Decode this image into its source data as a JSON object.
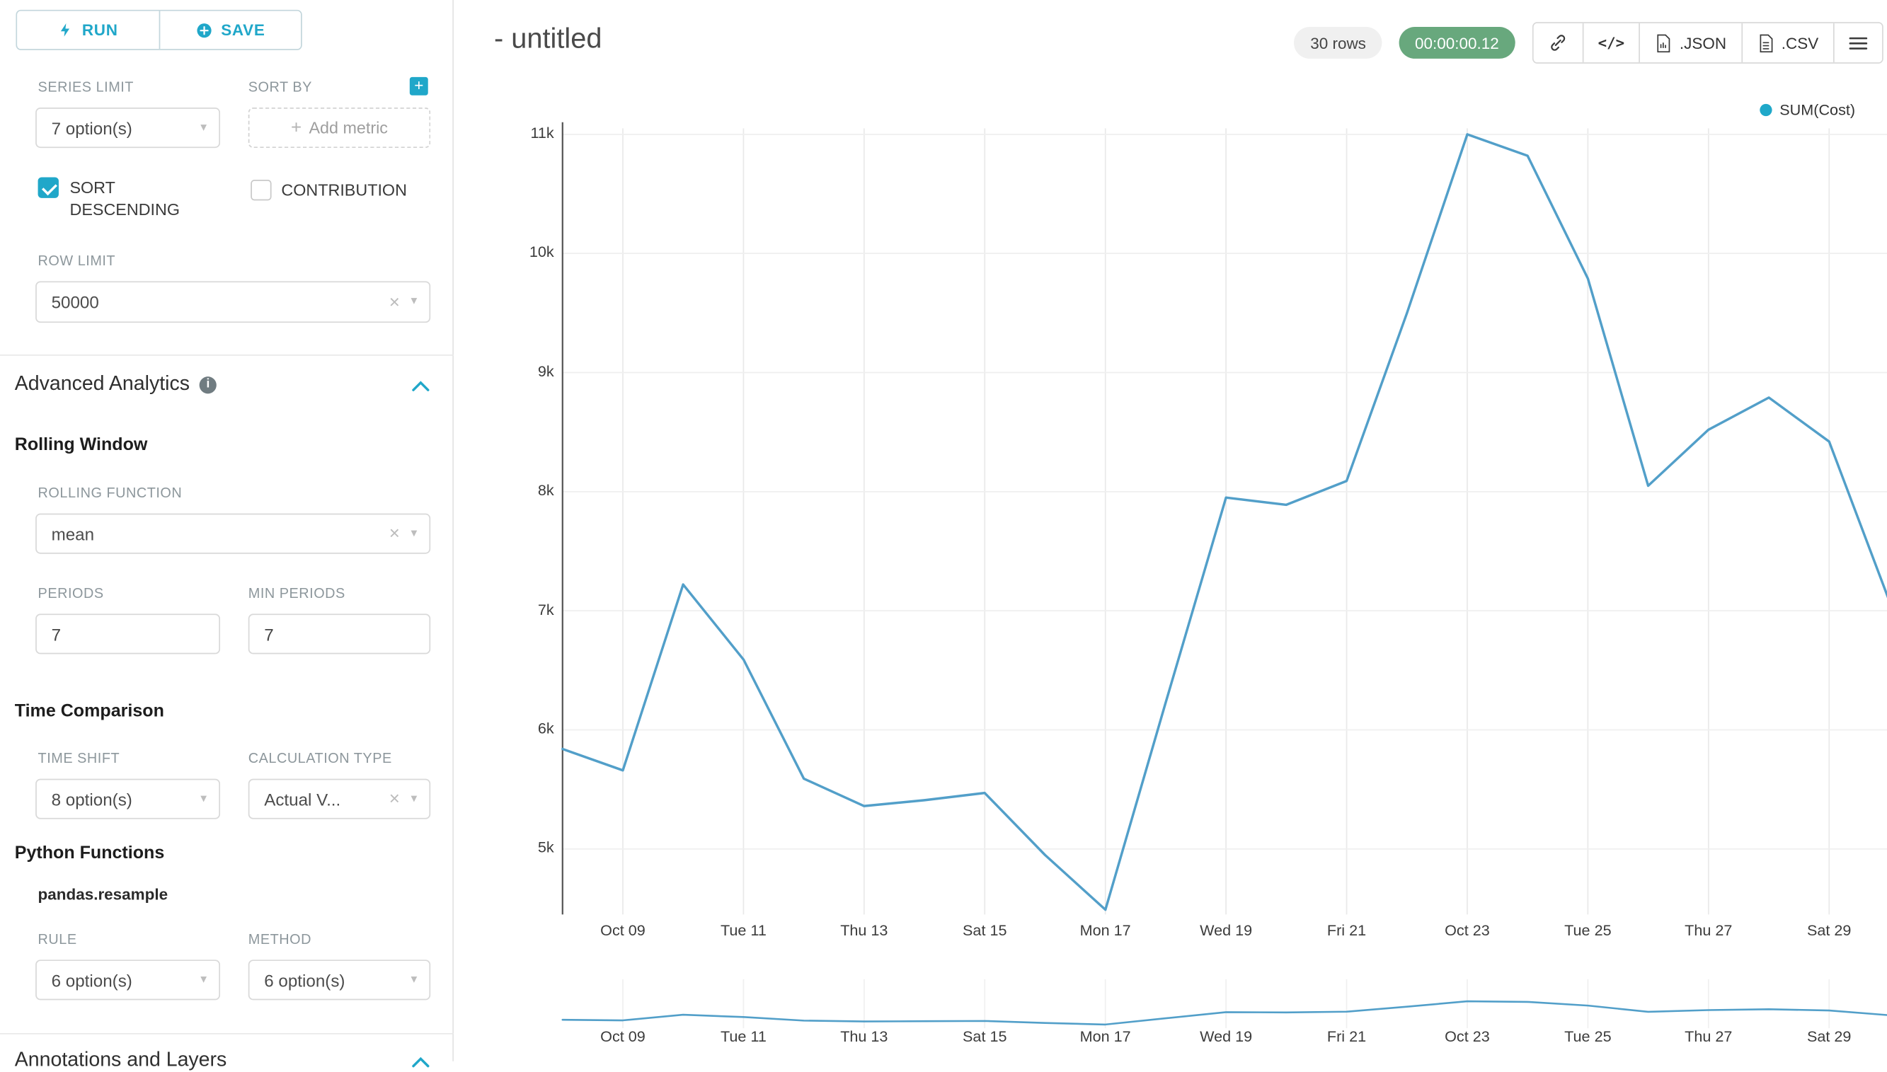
{
  "colors": {
    "accent": "#20a7c9",
    "timer_badge_bg": "#68a87d",
    "line": "#529fc9",
    "legend_dot": "#1fa8c9"
  },
  "toolbar": {
    "run": "RUN",
    "save": "SAVE"
  },
  "sidebar": {
    "series_limit": {
      "label": "SERIES LIMIT",
      "value": "7 option(s)"
    },
    "sort_by": {
      "label": "SORT BY",
      "placeholder_plus": "+",
      "placeholder": "Add metric"
    },
    "sort_descending": {
      "label": "SORT DESCENDING",
      "checked": true
    },
    "contribution": {
      "label": "CONTRIBUTION",
      "checked": false
    },
    "row_limit": {
      "label": "ROW LIMIT",
      "value": "50000"
    },
    "advanced_analytics": {
      "title": "Advanced Analytics"
    },
    "rolling_window": {
      "title": "Rolling Window",
      "rolling_function": {
        "label": "ROLLING FUNCTION",
        "value": "mean"
      },
      "periods": {
        "label": "PERIODS",
        "value": "7"
      },
      "min_periods": {
        "label": "MIN PERIODS",
        "value": "7"
      }
    },
    "time_comparison": {
      "title": "Time Comparison",
      "time_shift": {
        "label": "TIME SHIFT",
        "value": "8 option(s)"
      },
      "calculation_type": {
        "label": "CALCULATION TYPE",
        "value": "Actual V..."
      }
    },
    "python_functions": {
      "title": "Python Functions",
      "subtitle": "pandas.resample",
      "rule": {
        "label": "RULE",
        "value": "6 option(s)"
      },
      "method": {
        "label": "METHOD",
        "value": "6 option(s)"
      }
    },
    "annotations": {
      "title": "Annotations and Layers"
    }
  },
  "header": {
    "title": "- untitled",
    "rows_badge": "30 rows",
    "timer_badge": "00:00:00.12",
    "code_label": "</>",
    "json_label": ".JSON",
    "csv_label": ".CSV"
  },
  "legend": {
    "label": "SUM(Cost)"
  },
  "chart_data": {
    "type": "line",
    "title": "- untitled",
    "legend": [
      "SUM(Cost)"
    ],
    "legend_position": "top-right",
    "grid": true,
    "x": [
      "Oct 08",
      "Oct 09",
      "Oct 10",
      "Oct 11",
      "Oct 12",
      "Oct 13",
      "Oct 14",
      "Oct 15",
      "Oct 16",
      "Oct 17",
      "Oct 18",
      "Oct 19",
      "Oct 20",
      "Oct 21",
      "Oct 22",
      "Oct 23",
      "Oct 24",
      "Oct 25",
      "Oct 26",
      "Oct 27",
      "Oct 28",
      "Oct 29",
      "Oct 30"
    ],
    "series": [
      {
        "name": "SUM(Cost)",
        "values": [
          5840,
          5660,
          7220,
          6590,
          5590,
          5360,
          5410,
          5470,
          4950,
          4490,
          6230,
          7950,
          7890,
          8090,
          9500,
          11000,
          10820,
          9790,
          8050,
          8520,
          8790,
          8420,
          7080
        ]
      }
    ],
    "x_tick_labels": [
      "Oct 09",
      "Tue 11",
      "Thu 13",
      "Sat 15",
      "Mon 17",
      "Wed 19",
      "Fri 21",
      "Oct 23",
      "Tue 25",
      "Thu 27",
      "Sat 29"
    ],
    "y_tick_labels": [
      "5k",
      "6k",
      "7k",
      "8k",
      "9k",
      "10k",
      "11k"
    ],
    "y_tick_values": [
      5000,
      6000,
      7000,
      8000,
      9000,
      10000,
      11000
    ],
    "ylim": [
      4450,
      11050
    ],
    "xlabel": "",
    "ylabel": ""
  }
}
